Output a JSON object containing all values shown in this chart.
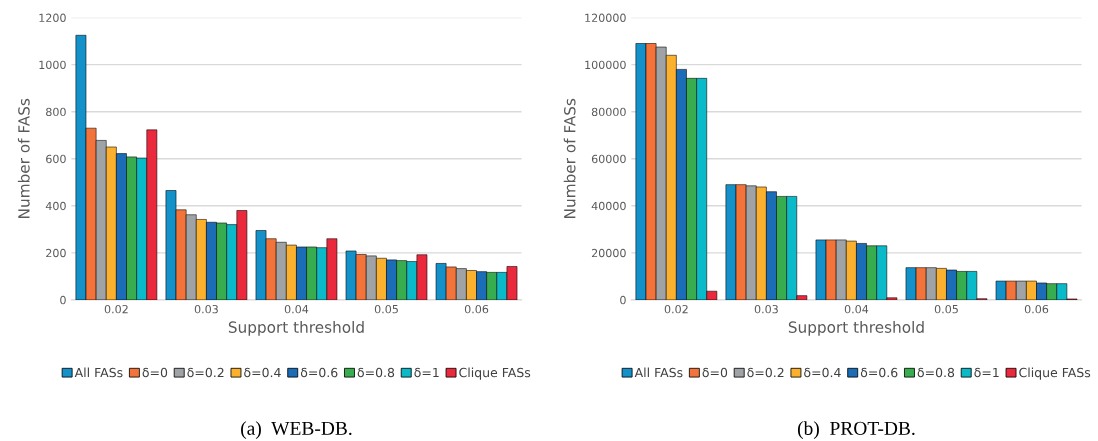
{
  "chart_data": [
    {
      "type": "bar",
      "title": "(a)  WEB-DB.",
      "xlabel": "Support threshold",
      "ylabel": "Number of FASs",
      "categories": [
        "0.02",
        "0.03",
        "0.04",
        "0.05",
        "0.06"
      ],
      "ylim": [
        0,
        1200
      ],
      "yticks": [
        0,
        200,
        400,
        600,
        800,
        1000,
        1200
      ],
      "grid": "y",
      "legend": "bottom",
      "series": [
        {
          "name": "All FASs",
          "color": "#1591c9",
          "values": [
            1125,
            465,
            295,
            208,
            155
          ]
        },
        {
          "name": "δ=0",
          "color": "#f3743b",
          "values": [
            730,
            383,
            260,
            193,
            140
          ]
        },
        {
          "name": "δ=0.2",
          "color": "#a0a3a6",
          "values": [
            678,
            362,
            245,
            187,
            133
          ]
        },
        {
          "name": "δ=0.4",
          "color": "#fbb02e",
          "values": [
            650,
            342,
            233,
            177,
            125
          ]
        },
        {
          "name": "δ=0.6",
          "color": "#1a6db6",
          "values": [
            622,
            330,
            225,
            170,
            120
          ]
        },
        {
          "name": "δ=0.8",
          "color": "#38ad4f",
          "values": [
            608,
            327,
            225,
            167,
            117
          ]
        },
        {
          "name": "δ=1",
          "color": "#0bbac8",
          "values": [
            603,
            320,
            222,
            163,
            117
          ]
        },
        {
          "name": "Clique FASs",
          "color": "#ea2a3c",
          "values": [
            723,
            380,
            260,
            192,
            142
          ]
        }
      ]
    },
    {
      "type": "bar",
      "title": "(b)  PROT-DB.",
      "xlabel": "Support threshold",
      "ylabel": "Number of FASs",
      "categories": [
        "0.02",
        "0.03",
        "0.04",
        "0.05",
        "0.06"
      ],
      "ylim": [
        0,
        120000
      ],
      "yticks": [
        0,
        20000,
        40000,
        60000,
        80000,
        100000,
        120000
      ],
      "grid": "y",
      "legend": "bottom",
      "series": [
        {
          "name": "All FASs",
          "color": "#1591c9",
          "values": [
            109000,
            49000,
            25500,
            13700,
            8000
          ]
        },
        {
          "name": "δ=0",
          "color": "#f3743b",
          "values": [
            109000,
            49000,
            25500,
            13700,
            8000
          ]
        },
        {
          "name": "δ=0.2",
          "color": "#a0a3a6",
          "values": [
            107500,
            48500,
            25500,
            13700,
            8000
          ]
        },
        {
          "name": "δ=0.4",
          "color": "#fbb02e",
          "values": [
            104000,
            48000,
            25000,
            13400,
            8000
          ]
        },
        {
          "name": "δ=0.6",
          "color": "#1a6db6",
          "values": [
            98000,
            46000,
            24000,
            12700,
            7200
          ]
        },
        {
          "name": "δ=0.8",
          "color": "#38ad4f",
          "values": [
            94200,
            44000,
            23000,
            12100,
            6900
          ]
        },
        {
          "name": "δ=1",
          "color": "#0bbac8",
          "values": [
            94200,
            44000,
            23000,
            12100,
            6900
          ]
        },
        {
          "name": "Clique FASs",
          "color": "#ea2a3c",
          "values": [
            3700,
            1800,
            900,
            500,
            400
          ]
        }
      ]
    }
  ]
}
